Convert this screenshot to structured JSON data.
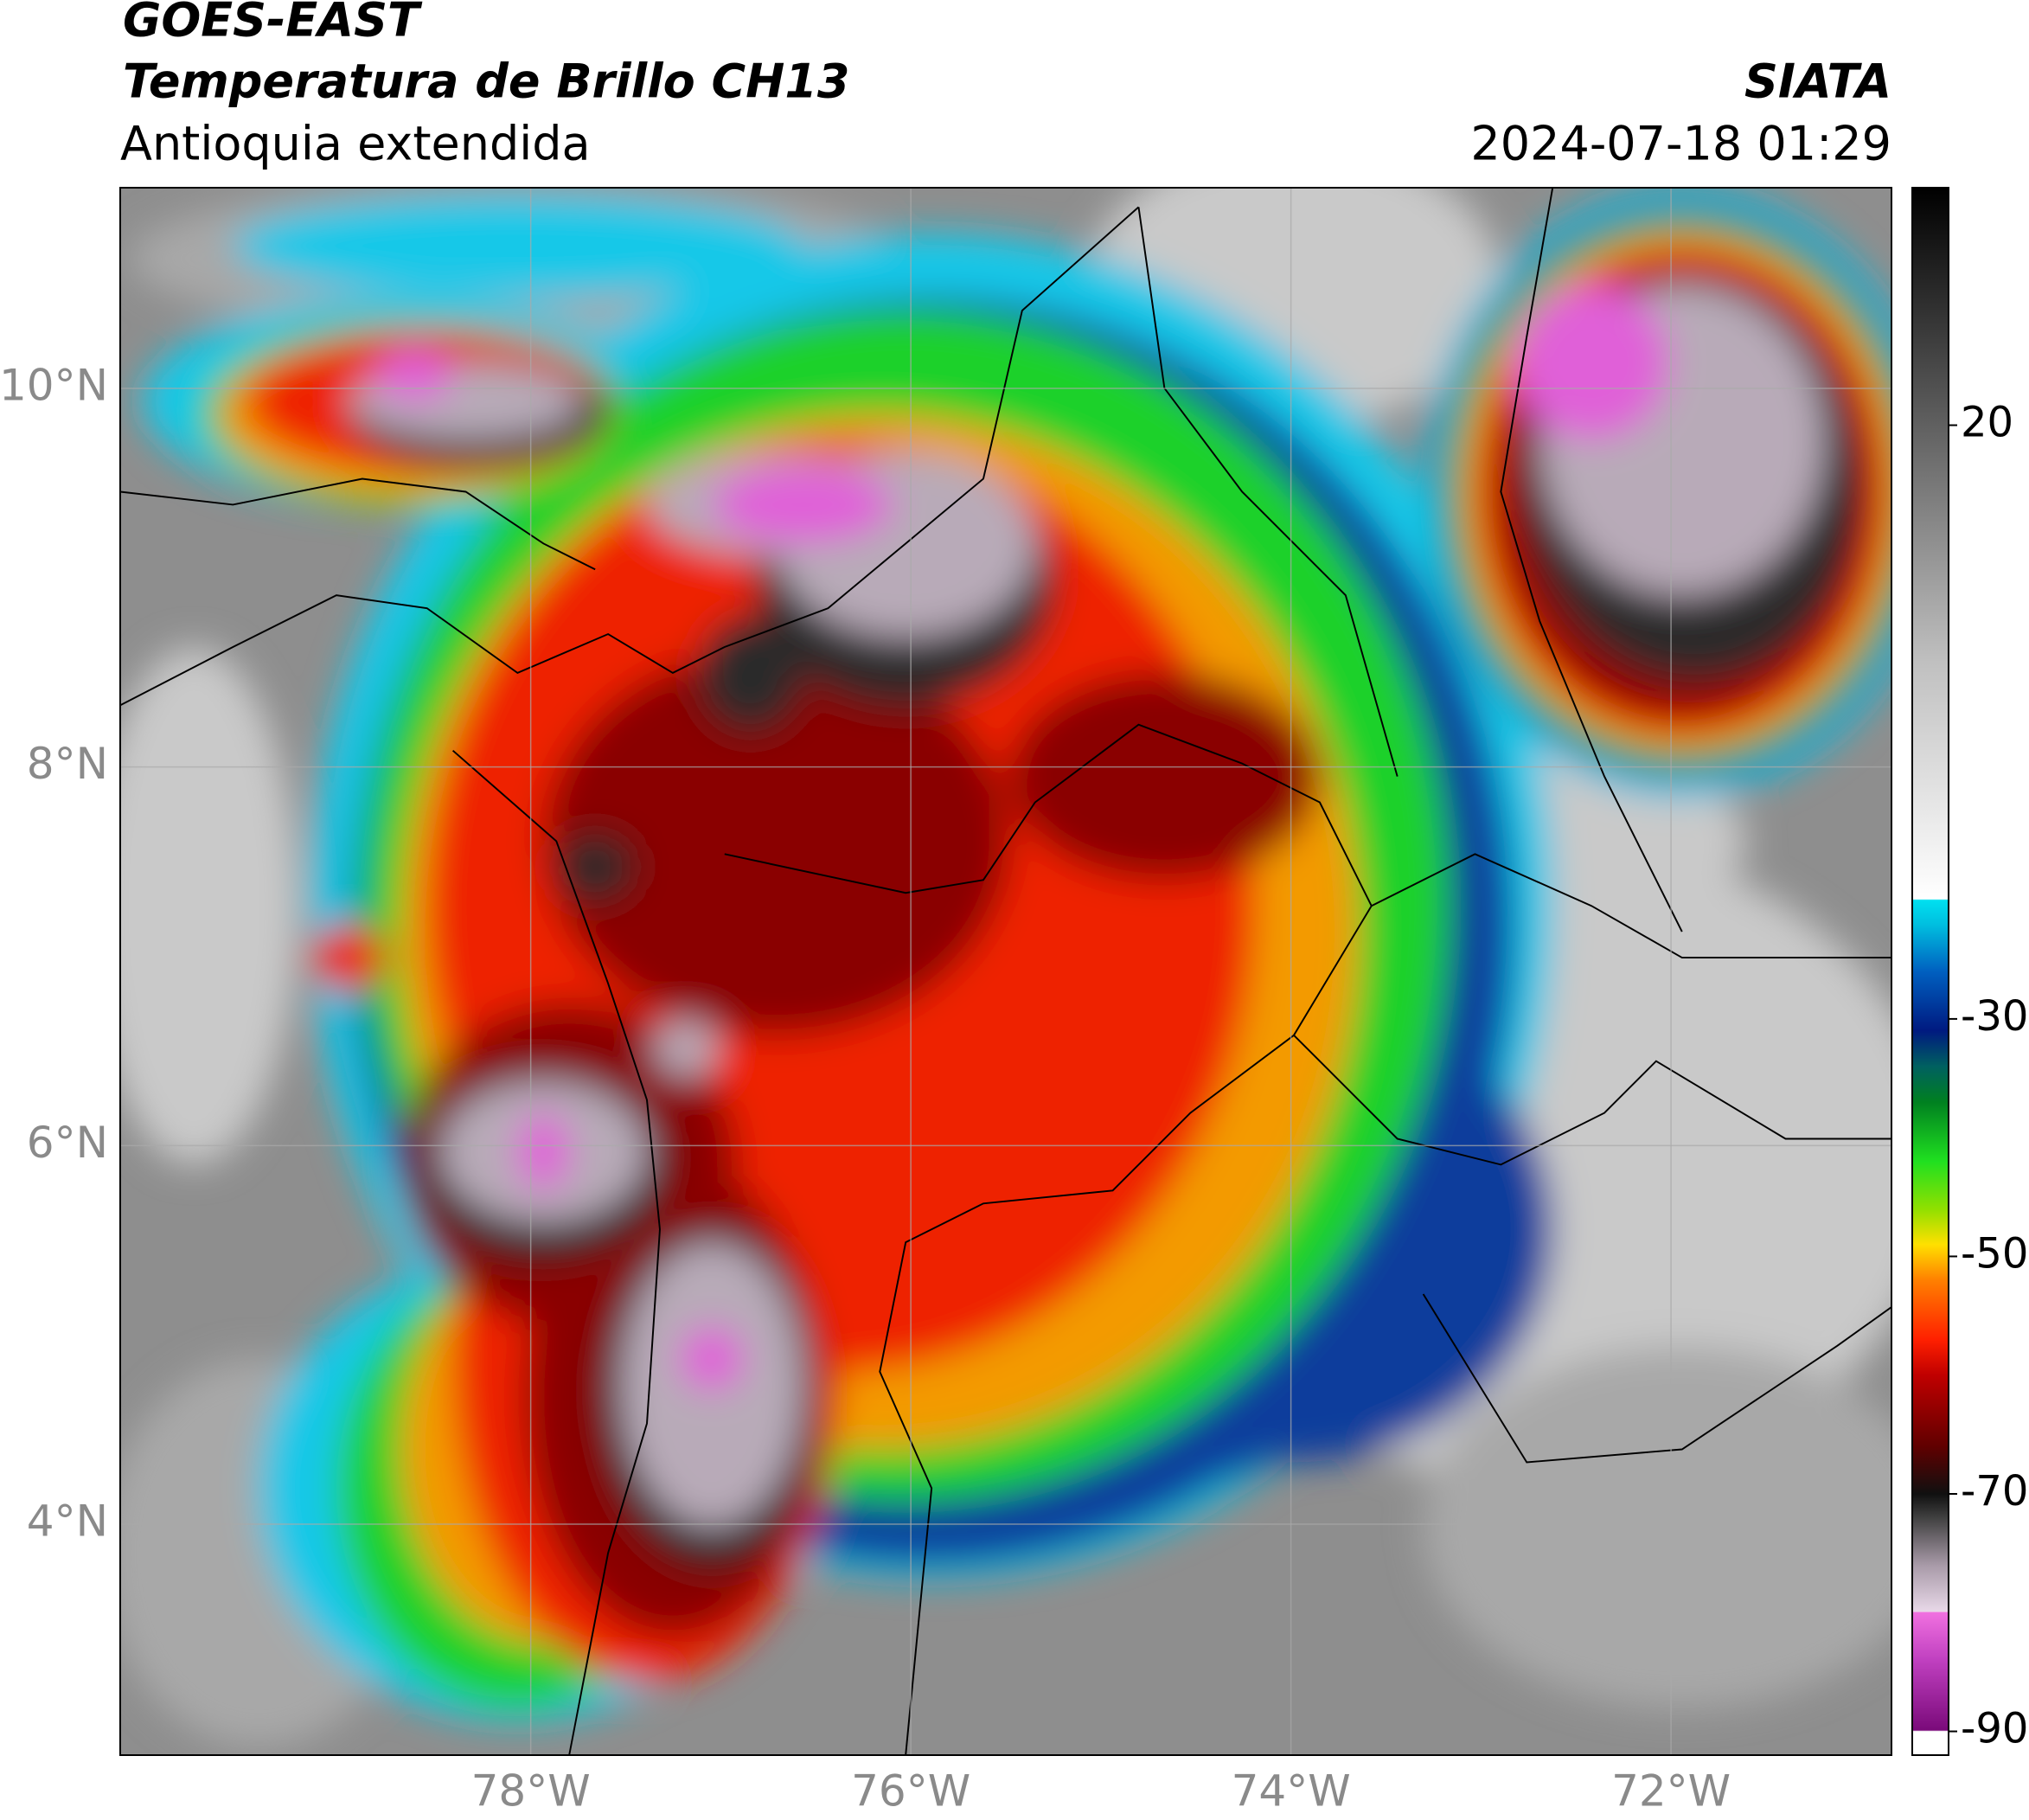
{
  "chart_data": {
    "type": "map",
    "title": "GOES-EAST",
    "subtitle": "Temperatura de Brillo CH13",
    "region": "Antioquia extendida",
    "agency": "SIATA",
    "datetime": "2024-07-18 01:29",
    "xlim": [
      -80.16,
      -70.84
    ],
    "ylim": [
      2.78,
      11.06
    ],
    "xticks": [
      {
        "value": -78,
        "label": "78°W"
      },
      {
        "value": -76,
        "label": "76°W"
      },
      {
        "value": -74,
        "label": "74°W"
      },
      {
        "value": -72,
        "label": "72°W"
      }
    ],
    "yticks": [
      {
        "value": 4,
        "label": "4°N"
      },
      {
        "value": 6,
        "label": "6°N"
      },
      {
        "value": 8,
        "label": "8°N"
      },
      {
        "value": 10,
        "label": "10°N"
      }
    ],
    "grid": true,
    "colorbar": {
      "lim": [
        -92,
        40
      ],
      "ticks": [
        20,
        -30,
        -50,
        -70,
        -90
      ],
      "stops": [
        [
          -92,
          "#ffffff"
        ],
        [
          -90,
          "#ffffff"
        ],
        [
          -89.9,
          "#7a0a7a"
        ],
        [
          -84,
          "#c040c0"
        ],
        [
          -80,
          "#f070e0"
        ],
        [
          -79.9,
          "#e8d8e8"
        ],
        [
          -76,
          "#a89aa8"
        ],
        [
          -72,
          "#404040"
        ],
        [
          -70,
          "#101010"
        ],
        [
          -66,
          "#600000"
        ],
        [
          -60,
          "#c00000"
        ],
        [
          -57,
          "#ff2000"
        ],
        [
          -52,
          "#ff8000"
        ],
        [
          -49,
          "#ffe000"
        ],
        [
          -46,
          "#90e000"
        ],
        [
          -42,
          "#20e020"
        ],
        [
          -37,
          "#008020"
        ],
        [
          -34,
          "#006060"
        ],
        [
          -31,
          "#001a80"
        ],
        [
          -26,
          "#0060c0"
        ],
        [
          -22,
          "#00c0e0"
        ],
        [
          -20,
          "#00e0f0"
        ],
        [
          -19.9,
          "#ffffff"
        ],
        [
          0,
          "#c0c0c0"
        ],
        [
          20,
          "#606060"
        ],
        [
          40,
          "#000000"
        ]
      ]
    }
  }
}
